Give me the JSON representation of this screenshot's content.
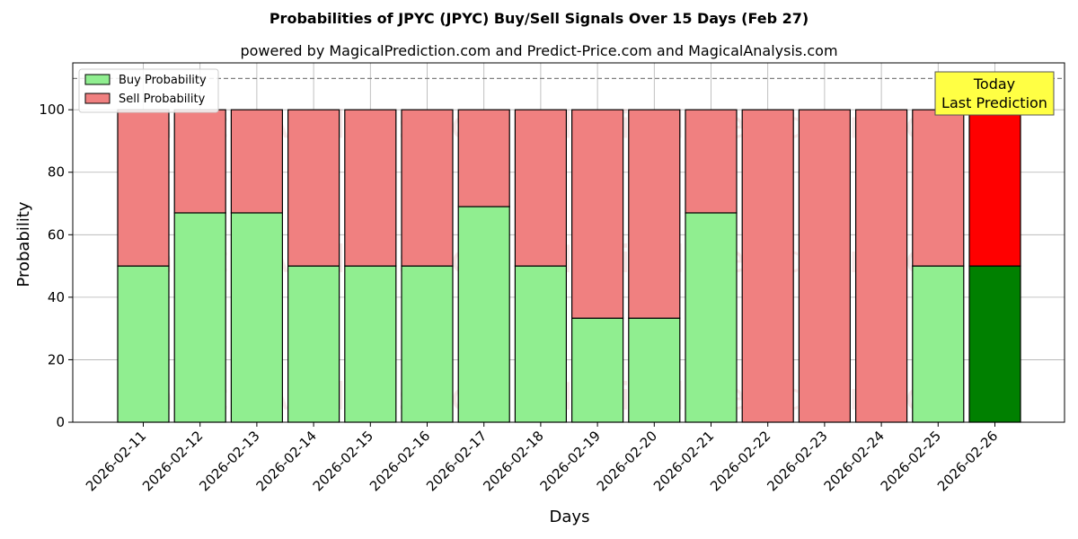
{
  "chart_data": {
    "type": "bar",
    "stacked": true,
    "title": "Probabilities of JPYC (JPYC) Buy/Sell Signals Over 15 Days (Feb 27)",
    "subtitle": "powered by MagicalPrediction.com and Predict-Price.com and MagicalAnalysis.com",
    "xlabel": "Days",
    "ylabel": "Probability",
    "ylim": [
      0,
      115
    ],
    "yticks": [
      0,
      20,
      40,
      60,
      80,
      100
    ],
    "grid": true,
    "legend_position": "top-left",
    "categories": [
      "2026-02-11",
      "2026-02-12",
      "2026-02-13",
      "2026-02-14",
      "2026-02-15",
      "2026-02-16",
      "2026-02-17",
      "2026-02-18",
      "2026-02-19",
      "2026-02-20",
      "2026-02-21",
      "2026-02-22",
      "2026-02-23",
      "2026-02-24",
      "2026-02-25",
      "2026-02-26"
    ],
    "series": [
      {
        "name": "Buy Probability",
        "color": "#90ee90",
        "values": [
          50,
          67,
          67,
          50,
          50,
          50,
          69,
          50,
          33.3,
          33.3,
          67,
          0,
          0,
          0,
          50,
          50
        ]
      },
      {
        "name": "Sell Probability",
        "color": "#f08080",
        "values": [
          50,
          33,
          33,
          50,
          50,
          50,
          31,
          50,
          66.7,
          66.7,
          33,
          100,
          100,
          100,
          50,
          50
        ]
      }
    ],
    "highlight": {
      "index": 15,
      "buy_color": "#008000",
      "sell_color": "#ff0000"
    },
    "reference_line": {
      "y": 110,
      "style": "dashed",
      "color": "#808080"
    },
    "annotation": {
      "lines": [
        "Today",
        "Last Prediction"
      ],
      "background": "#ffff44"
    },
    "watermarks": [
      "MagicalAnalysis.com",
      "MagicalPrediction.com"
    ]
  }
}
